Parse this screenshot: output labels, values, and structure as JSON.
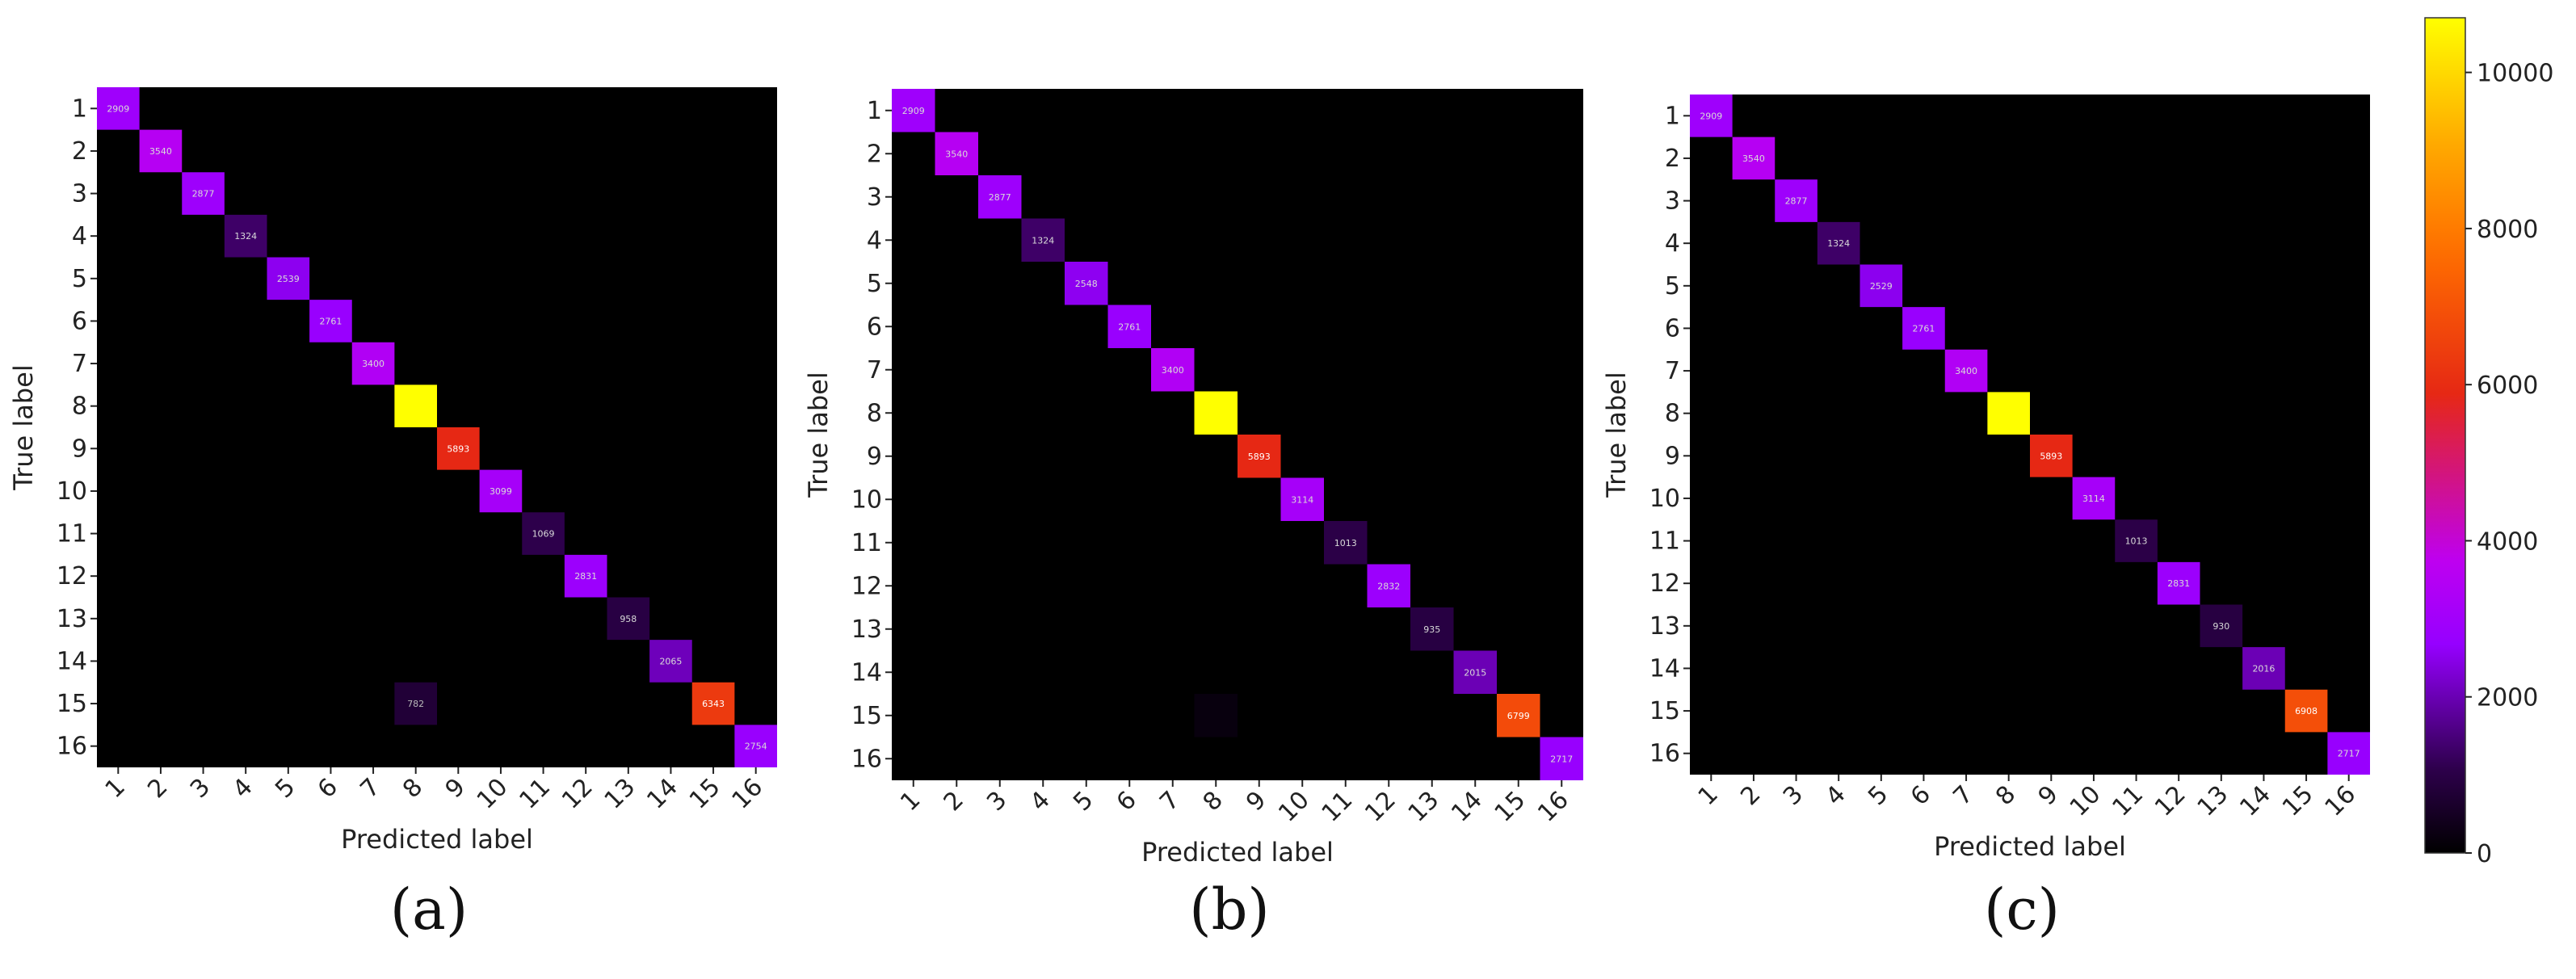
{
  "chart_data": [
    {
      "type": "heatmap",
      "caption": "(a)",
      "xlabel": "Predicted label",
      "ylabel": "True label",
      "labels": [
        "1",
        "2",
        "3",
        "4",
        "5",
        "6",
        "7",
        "8",
        "9",
        "10",
        "11",
        "12",
        "13",
        "14",
        "15",
        "16"
      ],
      "diagonal": [
        2909,
        3540,
        2877,
        1324,
        2539,
        2761,
        3400,
        10700,
        5893,
        3099,
        1069,
        2831,
        958,
        2065,
        6343,
        2754
      ],
      "diagonal_text": [
        "2909",
        "3540",
        "2877",
        "1324",
        "2539",
        "2761",
        "3400",
        "",
        "5893",
        "3099",
        "1069",
        "2831",
        "958",
        "2065",
        "6343",
        "2754"
      ],
      "off_diagonal": [
        {
          "true": 15,
          "pred": 8,
          "value": 782,
          "text": "782"
        }
      ]
    },
    {
      "type": "heatmap",
      "caption": "(b)",
      "xlabel": "Predicted label",
      "ylabel": "True label",
      "labels": [
        "1",
        "2",
        "3",
        "4",
        "5",
        "6",
        "7",
        "8",
        "9",
        "10",
        "11",
        "12",
        "13",
        "14",
        "15",
        "16"
      ],
      "diagonal": [
        2909,
        3540,
        2877,
        1324,
        2548,
        2761,
        3400,
        10700,
        5893,
        3114,
        1013,
        2832,
        935,
        2015,
        6799,
        2717
      ],
      "diagonal_text": [
        "2909",
        "3540",
        "2877",
        "1324",
        "2548",
        "2761",
        "3400",
        "",
        "5893",
        "3114",
        "1013",
        "2832",
        "935",
        "2015",
        "6799",
        "2717"
      ],
      "off_diagonal": [
        {
          "true": 15,
          "pred": 8,
          "value": 200,
          "text": ""
        }
      ]
    },
    {
      "type": "heatmap",
      "caption": "(c)",
      "xlabel": "Predicted label",
      "ylabel": "True label",
      "labels": [
        "1",
        "2",
        "3",
        "4",
        "5",
        "6",
        "7",
        "8",
        "9",
        "10",
        "11",
        "12",
        "13",
        "14",
        "15",
        "16"
      ],
      "diagonal": [
        2909,
        3540,
        2877,
        1324,
        2529,
        2761,
        3400,
        10700,
        5893,
        3114,
        1013,
        2831,
        930,
        2016,
        6908,
        2717
      ],
      "diagonal_text": [
        "2909",
        "3540",
        "2877",
        "1324",
        "2529",
        "2761",
        "3400",
        "",
        "5893",
        "3114",
        "1013",
        "2831",
        "930",
        "2016",
        "6908",
        "2717"
      ],
      "off_diagonal": []
    }
  ],
  "colorbar": {
    "min": 0,
    "max": 10700,
    "ticks": [
      0,
      2000,
      4000,
      6000,
      8000,
      10000
    ],
    "tick_labels": [
      "0",
      "2000",
      "4000",
      "6000",
      "8000",
      "10000"
    ],
    "colormap": "gnuplot"
  }
}
